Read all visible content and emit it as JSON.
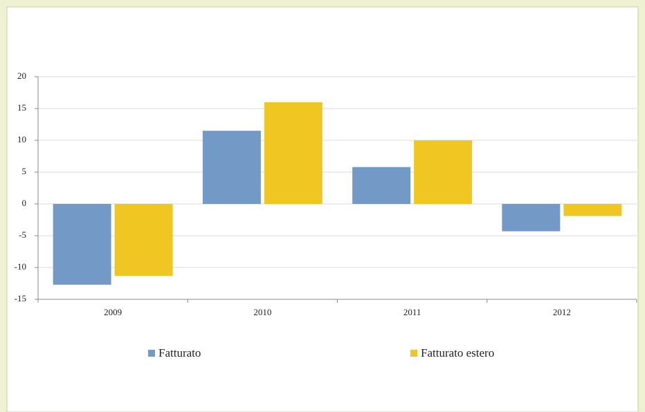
{
  "chart_data": {
    "type": "bar",
    "categories": [
      "2009",
      "2010",
      "2011",
      "2012"
    ],
    "series": [
      {
        "name": "Fatturato",
        "color": "#7399c6",
        "values": [
          -12.7,
          11.5,
          5.8,
          -4.3
        ]
      },
      {
        "name": "Fatturato estero",
        "color": "#f0c622",
        "values": [
          -11.3,
          16,
          10,
          -1.9
        ]
      }
    ],
    "ylim": [
      -15,
      20
    ],
    "yticks": [
      -15,
      -10,
      -5,
      0,
      5,
      10,
      15,
      20
    ],
    "grid": true,
    "legend": "bottom"
  }
}
